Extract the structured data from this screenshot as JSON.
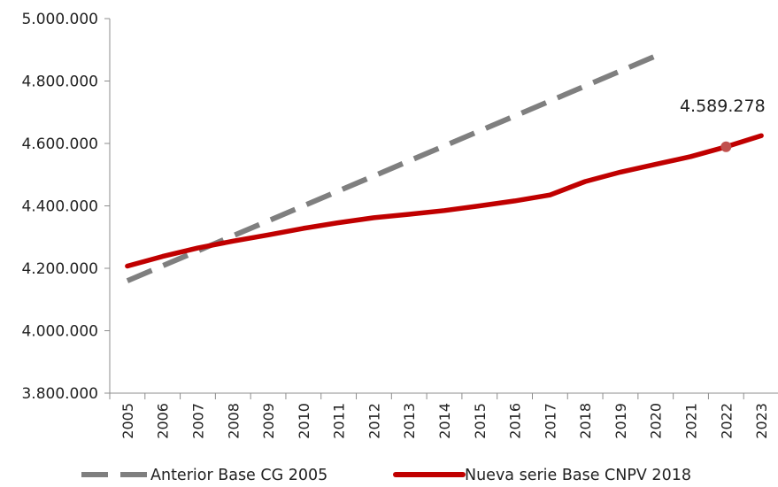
{
  "chart_data": {
    "type": "line",
    "categories": [
      "2005",
      "2006",
      "2007",
      "2008",
      "2009",
      "2010",
      "2011",
      "2012",
      "2013",
      "2014",
      "2015",
      "2016",
      "2017",
      "2018",
      "2019",
      "2020",
      "2021",
      "2022",
      "2023"
    ],
    "ylim": [
      3800000,
      5000000
    ],
    "yticks": [
      3800000,
      4000000,
      4200000,
      4400000,
      4600000,
      4800000,
      5000000
    ],
    "ytick_labels": [
      "3.800.000",
      "4.000.000",
      "4.200.000",
      "4.400.000",
      "4.600.000",
      "4.800.000",
      "5.000.000"
    ],
    "grid": false,
    "legend_position": "bottom",
    "series": [
      {
        "name": "Anterior Base CG 2005",
        "color": "#7f7f7f",
        "style": "dashed",
        "values": [
          4160000,
          4208000,
          4256000,
          4304000,
          4352000,
          4400000,
          4448000,
          4496000,
          4544000,
          4592000,
          4640000,
          4688000,
          4736000,
          4784000,
          4832000,
          4880000,
          null,
          null,
          null
        ]
      },
      {
        "name": "Nueva serie Base CNPV 2018",
        "color": "#c00000",
        "style": "solid",
        "values": [
          4207000,
          4238000,
          4265000,
          4287000,
          4307000,
          4328000,
          4346000,
          4362000,
          4373000,
          4385000,
          4400000,
          4416000,
          4435000,
          4478000,
          4508000,
          4533000,
          4558000,
          4589278,
          4625000
        ]
      }
    ],
    "annotation": {
      "label": "4.589.278",
      "category": "2022",
      "value": 4589278,
      "color": "#c0504d"
    }
  }
}
